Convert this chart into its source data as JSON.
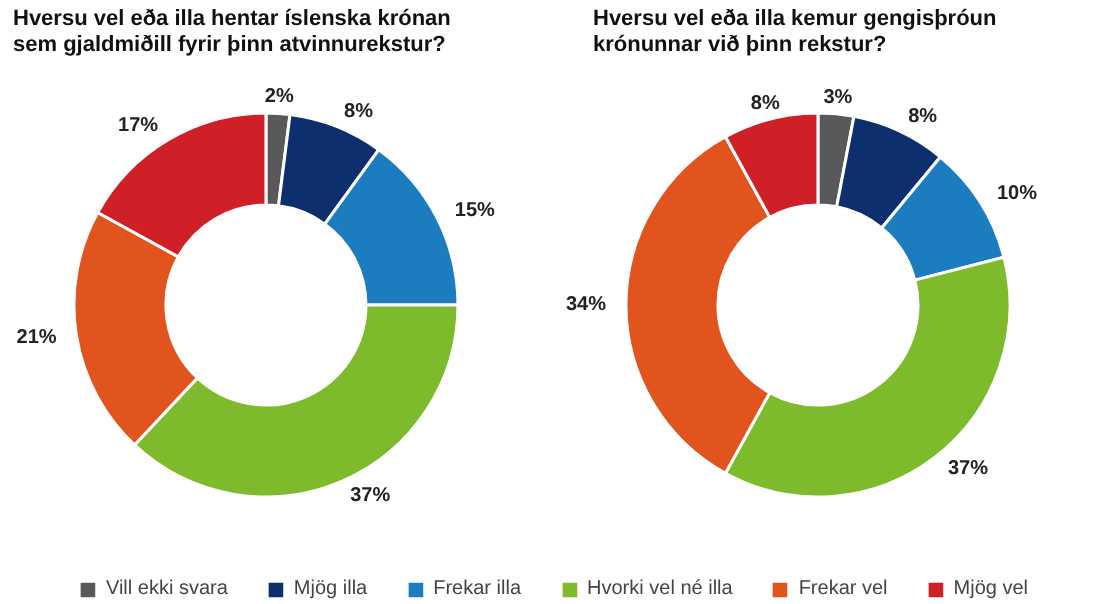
{
  "chart_data": [
    {
      "type": "donut",
      "title": "Hversu vel eða illa hentar íslenska krónan sem gjaldmiðill fyrir þinn atvinnurekstur?",
      "categories": [
        "Vill ekki svara",
        "Mjög illa",
        "Frekar illa",
        "Hvorki vel né illa",
        "Frekar vel",
        "Mjög vel"
      ],
      "values": [
        2,
        8,
        15,
        37,
        21,
        17
      ],
      "value_labels": [
        "2%",
        "8%",
        "15%",
        "37%",
        "21%",
        "17%"
      ],
      "colors": [
        "#595959",
        "#0e2f6e",
        "#1b7dbf",
        "#7dba2c",
        "#e2541d",
        "#cf1f27"
      ],
      "legend": "bottom"
    },
    {
      "type": "donut",
      "title": "Hversu vel eða illa kemur gengisþróun krónunnar við þinn rekstur?",
      "values": [
        3,
        8,
        10,
        37,
        34,
        8
      ],
      "value_labels": [
        "3%",
        "8%",
        "10%",
        "37%",
        "34%",
        "8%"
      ],
      "colors": [
        "#595959",
        "#0e2f6e",
        "#1b7dbf",
        "#7dba2c",
        "#e2541d",
        "#cf1f27"
      ]
    }
  ]
}
